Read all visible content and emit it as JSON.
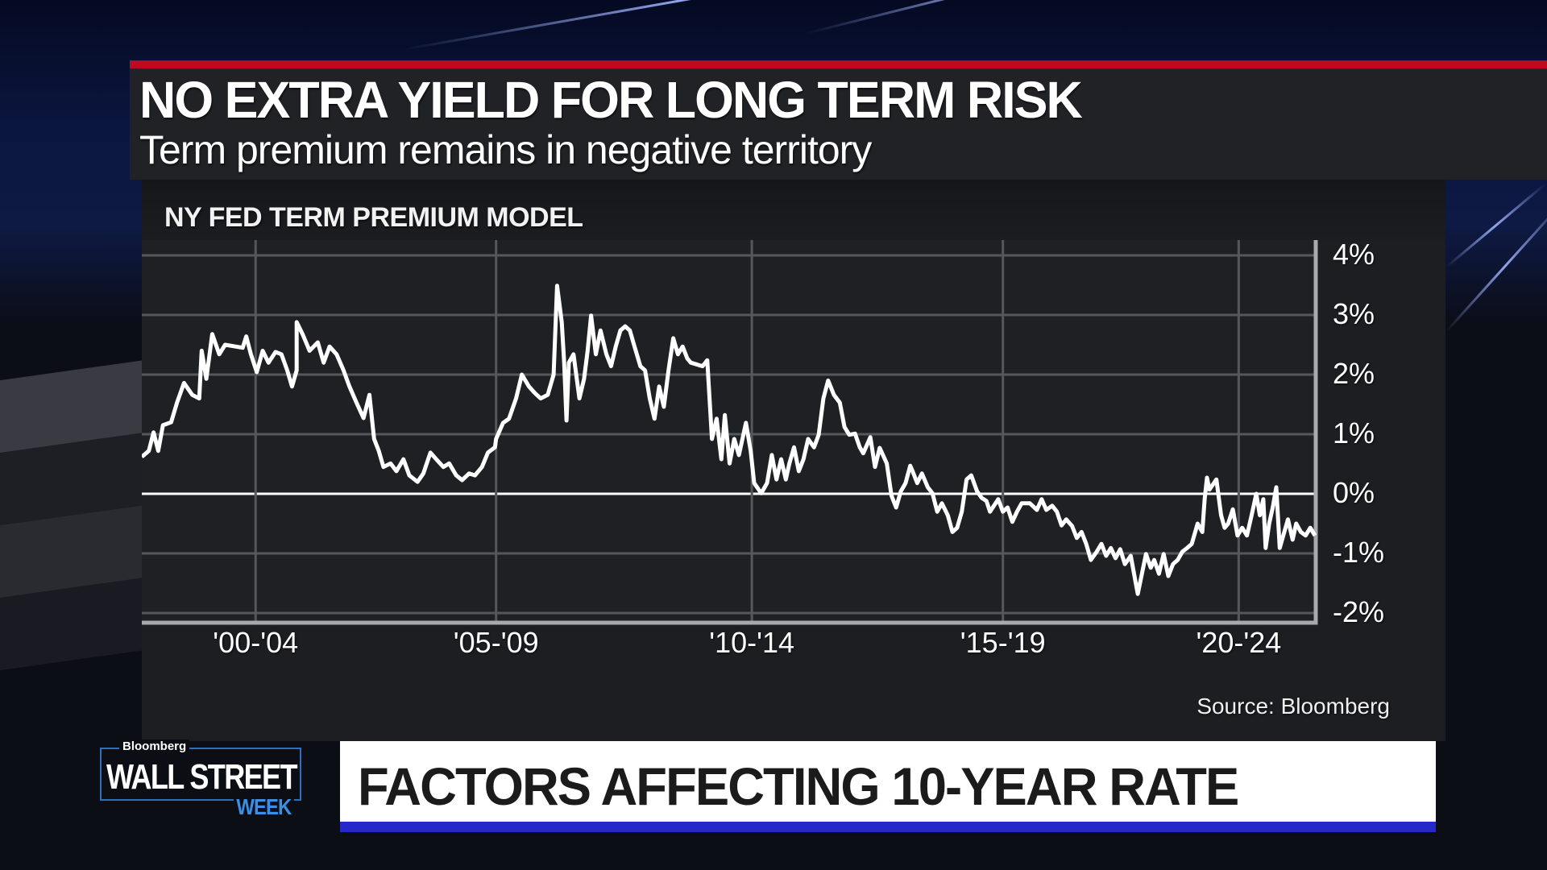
{
  "header": {
    "title": "NO EXTRA YIELD FOR LONG TERM RISK",
    "subtitle": "Term premium remains in negative territory",
    "accent_color": "#c0091e"
  },
  "chart_panel": {
    "title": "NY FED TERM PREMIUM MODEL",
    "source": "Source: Bloomberg"
  },
  "lower_third": {
    "text": "FACTORS AFFECTING 10-YEAR RATE",
    "accent_color": "#2629c8"
  },
  "logo": {
    "brand": "Bloomberg",
    "show_name": "WALL STREET",
    "show_suffix": "WEEK",
    "suffix_color": "#3a8fe6"
  },
  "chart_data": {
    "type": "line",
    "title": "NY FED TERM PREMIUM MODEL",
    "subtitle": "Term premium remains in negative territory",
    "xlabel": "",
    "ylabel": "",
    "ylim": [
      -2,
      4
    ],
    "yticks": [
      "4%",
      "3%",
      "2%",
      "1%",
      "0%",
      "-1%",
      "-2%"
    ],
    "ytick_values": [
      4,
      3,
      2,
      1,
      0,
      -1,
      -2
    ],
    "categories": [
      "'00-'04",
      "'05-'09",
      "'10-'14",
      "'15-'19",
      "'20-'24"
    ],
    "category_positions": [
      0.097,
      0.302,
      0.52,
      0.734,
      0.935
    ],
    "grid": true,
    "reference_line": 0,
    "axis_position": "right",
    "legend": null,
    "series": [
      {
        "name": "Term premium (%)",
        "x_frac": [
          0,
          0.006,
          0.01,
          0.014,
          0.018,
          0.025,
          0.03,
          0.036,
          0.043,
          0.049,
          0.051,
          0.055,
          0.06,
          0.066,
          0.071,
          0.08,
          0.086,
          0.089,
          0.093,
          0.098,
          0.103,
          0.108,
          0.114,
          0.119,
          0.124,
          0.128,
          0.132,
          0.132,
          0.137,
          0.143,
          0.15,
          0.155,
          0.16,
          0.166,
          0.172,
          0.177,
          0.183,
          0.189,
          0.194,
          0.198,
          0.202,
          0.206,
          0.212,
          0.217,
          0.223,
          0.228,
          0.235,
          0.24,
          0.246,
          0.251,
          0.257,
          0.262,
          0.268,
          0.273,
          0.279,
          0.284,
          0.29,
          0.295,
          0.301,
          0.302,
          0.308,
          0.313,
          0.319,
          0.324,
          0.33,
          0.335,
          0.34,
          0.346,
          0.351,
          0.354,
          0.358,
          0.36,
          0.362,
          0.364,
          0.368,
          0.373,
          0.377,
          0.38,
          0.383,
          0.387,
          0.391,
          0.396,
          0.4,
          0.404,
          0.408,
          0.412,
          0.416,
          0.42,
          0.425,
          0.429,
          0.433,
          0.437,
          0.441,
          0.445,
          0.449,
          0.453,
          0.457,
          0.461,
          0.465,
          0.468,
          0.478,
          0.482,
          0.486,
          0.49,
          0.494,
          0.497,
          0.501,
          0.505,
          0.509,
          0.515,
          0.519,
          0.522,
          0.528,
          0.533,
          0.537,
          0.541,
          0.545,
          0.549,
          0.552,
          0.556,
          0.56,
          0.564,
          0.568,
          0.573,
          0.577,
          0.581,
          0.585,
          0.59,
          0.595,
          0.599,
          0.603,
          0.608,
          0.612,
          0.615,
          0.621,
          0.625,
          0.629,
          0.635,
          0.639,
          0.643,
          0.647,
          0.651,
          0.655,
          0.657,
          0.661,
          0.665,
          0.67,
          0.674,
          0.678,
          0.682,
          0.687,
          0.691,
          0.695,
          0.699,
          0.703,
          0.707,
          0.712,
          0.716,
          0.72,
          0.723,
          0.73,
          0.734,
          0.738,
          0.742,
          0.746,
          0.75,
          0.757,
          0.763,
          0.767,
          0.771,
          0.776,
          0.78,
          0.784,
          0.788,
          0.793,
          0.797,
          0.801,
          0.805,
          0.809,
          0.814,
          0.818,
          0.822,
          0.826,
          0.83,
          0.834,
          0.838,
          0.843,
          0.849,
          0.856,
          0.86,
          0.863,
          0.867,
          0.871,
          0.875,
          0.879,
          0.883,
          0.887,
          0.891,
          0.895,
          0.9,
          0.904,
          0.906,
          0.908,
          0.91,
          0.916,
          0.92,
          0.923,
          0.926,
          0.93,
          0.934,
          0.938,
          0.942,
          0.946,
          0.95,
          0.953,
          0.956,
          0.958,
          0.961,
          0.964,
          0.967,
          0.97,
          0.973,
          0.977,
          0.981,
          0.984,
          0.988,
          0.992,
          0.996,
          1.0
        ],
        "values": [
          0.62,
          0.72,
          1.03,
          0.72,
          1.15,
          1.2,
          1.53,
          1.86,
          1.66,
          1.6,
          2.4,
          1.93,
          2.68,
          2.34,
          2.5,
          2.47,
          2.45,
          2.64,
          2.34,
          2.04,
          2.4,
          2.2,
          2.38,
          2.34,
          2.07,
          1.8,
          2.07,
          2.88,
          2.68,
          2.4,
          2.54,
          2.2,
          2.47,
          2.34,
          2.07,
          1.8,
          1.53,
          1.27,
          1.66,
          0.92,
          0.72,
          0.45,
          0.51,
          0.38,
          0.58,
          0.31,
          0.2,
          0.34,
          0.69,
          0.58,
          0.45,
          0.51,
          0.31,
          0.23,
          0.34,
          0.31,
          0.45,
          0.69,
          0.78,
          0.92,
          1.19,
          1.26,
          1.6,
          2.0,
          1.8,
          1.69,
          1.6,
          1.66,
          2.0,
          3.49,
          2.88,
          2.2,
          1.23,
          2.2,
          2.34,
          1.6,
          1.93,
          2.4,
          2.99,
          2.34,
          2.74,
          2.34,
          2.14,
          2.47,
          2.74,
          2.81,
          2.74,
          2.47,
          2.14,
          2.07,
          1.6,
          1.26,
          1.8,
          1.46,
          2.07,
          2.61,
          2.34,
          2.47,
          2.27,
          2.2,
          2.14,
          2.24,
          0.92,
          1.26,
          0.58,
          1.32,
          0.51,
          0.92,
          0.65,
          1.19,
          0.72,
          0.18,
          0.01,
          0.18,
          0.65,
          0.24,
          0.58,
          0.24,
          0.51,
          0.78,
          0.38,
          0.58,
          0.92,
          0.78,
          0.99,
          1.6,
          1.9,
          1.66,
          1.53,
          1.12,
          0.99,
          1.01,
          0.78,
          0.68,
          0.95,
          0.45,
          0.77,
          0.51,
          -0.03,
          -0.23,
          0.04,
          0.18,
          0.47,
          0.38,
          0.18,
          0.34,
          0.11,
          0.01,
          -0.3,
          -0.16,
          -0.36,
          -0.64,
          -0.57,
          -0.3,
          0.24,
          0.31,
          0.04,
          -0.07,
          -0.12,
          -0.3,
          -0.09,
          -0.3,
          -0.23,
          -0.47,
          -0.3,
          -0.16,
          -0.16,
          -0.27,
          -0.09,
          -0.27,
          -0.2,
          -0.3,
          -0.53,
          -0.43,
          -0.54,
          -0.74,
          -0.64,
          -0.84,
          -1.11,
          -0.97,
          -0.84,
          -1.04,
          -0.91,
          -1.08,
          -0.93,
          -1.18,
          -1.04,
          -1.68,
          -1.01,
          -1.24,
          -1.11,
          -1.34,
          -1.01,
          -1.38,
          -1.18,
          -1.11,
          -0.97,
          -0.91,
          -0.84,
          -0.5,
          -0.64,
          -0.09,
          0.27,
          0.07,
          0.24,
          -0.36,
          -0.57,
          -0.5,
          -0.26,
          -0.7,
          -0.57,
          -0.7,
          -0.36,
          0.0,
          -0.36,
          -0.09,
          -0.91,
          -0.5,
          -0.23,
          0.11,
          -0.91,
          -0.7,
          -0.43,
          -0.77,
          -0.5,
          -0.64,
          -0.7,
          -0.57,
          -0.7,
          -0.5,
          -0.6
        ]
      }
    ]
  }
}
